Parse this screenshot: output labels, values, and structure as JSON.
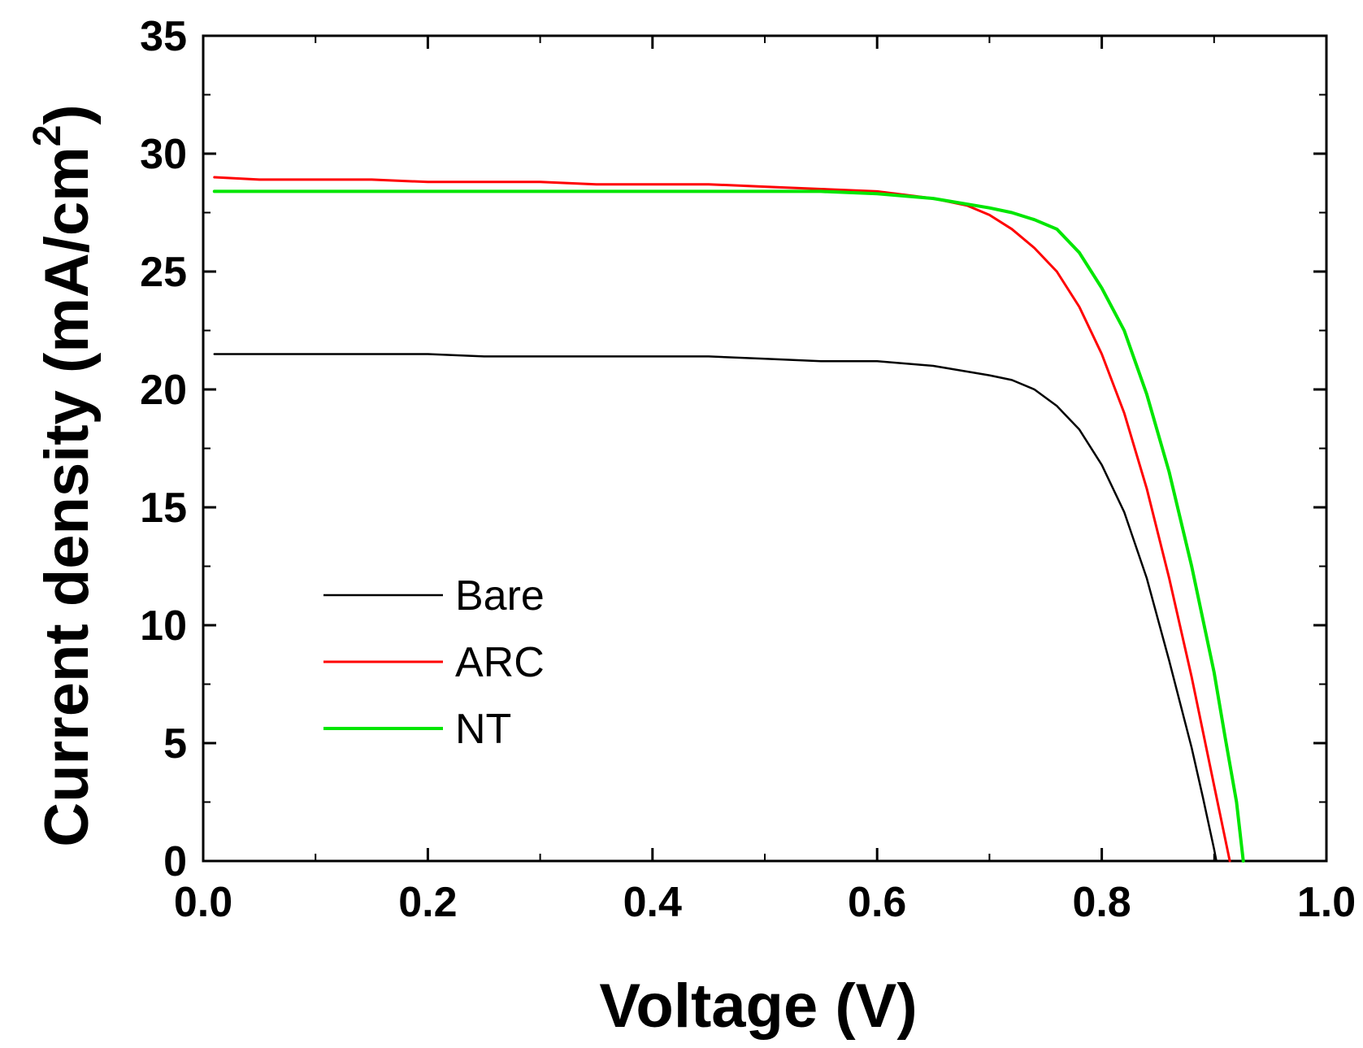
{
  "chart_data": {
    "type": "line",
    "title": "",
    "xlabel": "Voltage (V)",
    "ylabel": {
      "text": "Current density (mA/cm",
      "superscript": "2",
      "suffix": ")"
    },
    "xlim": [
      0.0,
      1.0
    ],
    "ylim": [
      0,
      35
    ],
    "x_ticks": [
      {
        "value": 0.0,
        "label": "0.0"
      },
      {
        "value": 0.2,
        "label": "0.2"
      },
      {
        "value": 0.4,
        "label": "0.4"
      },
      {
        "value": 0.6,
        "label": "0.6"
      },
      {
        "value": 0.8,
        "label": "0.8"
      },
      {
        "value": 1.0,
        "label": "1.0"
      }
    ],
    "x_minor_ticks": [
      0.1,
      0.3,
      0.5,
      0.7,
      0.9
    ],
    "y_ticks": [
      {
        "value": 0,
        "label": "0"
      },
      {
        "value": 5,
        "label": "5"
      },
      {
        "value": 10,
        "label": "10"
      },
      {
        "value": 15,
        "label": "15"
      },
      {
        "value": 20,
        "label": "20"
      },
      {
        "value": 25,
        "label": "25"
      },
      {
        "value": 30,
        "label": "30"
      },
      {
        "value": 35,
        "label": "35"
      }
    ],
    "y_minor_ticks": [
      2.5,
      7.5,
      12.5,
      17.5,
      22.5,
      27.5,
      32.5
    ],
    "grid": false,
    "legend_position": "center-left",
    "series": [
      {
        "name": "Bare",
        "color": "#000000",
        "points": [
          [
            0.01,
            21.5
          ],
          [
            0.05,
            21.5
          ],
          [
            0.1,
            21.5
          ],
          [
            0.15,
            21.5
          ],
          [
            0.2,
            21.5
          ],
          [
            0.25,
            21.4
          ],
          [
            0.3,
            21.4
          ],
          [
            0.35,
            21.4
          ],
          [
            0.4,
            21.4
          ],
          [
            0.45,
            21.4
          ],
          [
            0.5,
            21.3
          ],
          [
            0.55,
            21.2
          ],
          [
            0.6,
            21.2
          ],
          [
            0.65,
            21.0
          ],
          [
            0.7,
            20.6
          ],
          [
            0.72,
            20.4
          ],
          [
            0.74,
            20.0
          ],
          [
            0.76,
            19.3
          ],
          [
            0.78,
            18.3
          ],
          [
            0.8,
            16.8
          ],
          [
            0.82,
            14.8
          ],
          [
            0.84,
            12.0
          ],
          [
            0.86,
            8.5
          ],
          [
            0.88,
            4.8
          ],
          [
            0.89,
            2.7
          ],
          [
            0.9,
            0.5
          ],
          [
            0.902,
            0.0
          ]
        ]
      },
      {
        "name": "ARC",
        "color": "#ff0000",
        "points": [
          [
            0.01,
            29.0
          ],
          [
            0.05,
            28.9
          ],
          [
            0.1,
            28.9
          ],
          [
            0.15,
            28.9
          ],
          [
            0.2,
            28.8
          ],
          [
            0.25,
            28.8
          ],
          [
            0.3,
            28.8
          ],
          [
            0.35,
            28.7
          ],
          [
            0.4,
            28.7
          ],
          [
            0.45,
            28.7
          ],
          [
            0.5,
            28.6
          ],
          [
            0.55,
            28.5
          ],
          [
            0.6,
            28.4
          ],
          [
            0.65,
            28.1
          ],
          [
            0.68,
            27.8
          ],
          [
            0.7,
            27.4
          ],
          [
            0.72,
            26.8
          ],
          [
            0.74,
            26.0
          ],
          [
            0.76,
            25.0
          ],
          [
            0.78,
            23.5
          ],
          [
            0.8,
            21.5
          ],
          [
            0.82,
            19.0
          ],
          [
            0.84,
            15.8
          ],
          [
            0.86,
            12.0
          ],
          [
            0.88,
            7.8
          ],
          [
            0.9,
            3.2
          ],
          [
            0.914,
            0.0
          ]
        ]
      },
      {
        "name": "NT",
        "color": "#00e600",
        "points": [
          [
            0.01,
            28.4
          ],
          [
            0.1,
            28.4
          ],
          [
            0.2,
            28.4
          ],
          [
            0.3,
            28.4
          ],
          [
            0.4,
            28.4
          ],
          [
            0.5,
            28.4
          ],
          [
            0.55,
            28.4
          ],
          [
            0.6,
            28.3
          ],
          [
            0.65,
            28.1
          ],
          [
            0.7,
            27.7
          ],
          [
            0.72,
            27.5
          ],
          [
            0.74,
            27.2
          ],
          [
            0.76,
            26.8
          ],
          [
            0.78,
            25.8
          ],
          [
            0.8,
            24.3
          ],
          [
            0.82,
            22.5
          ],
          [
            0.84,
            19.8
          ],
          [
            0.86,
            16.5
          ],
          [
            0.88,
            12.5
          ],
          [
            0.9,
            8.0
          ],
          [
            0.91,
            5.2
          ],
          [
            0.92,
            2.5
          ],
          [
            0.926,
            0.0
          ]
        ]
      }
    ]
  }
}
